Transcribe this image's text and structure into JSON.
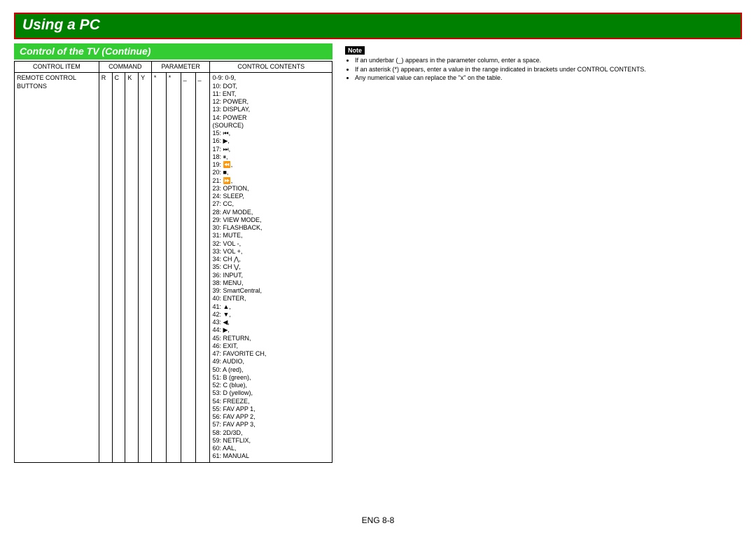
{
  "title": "Using a PC",
  "subtitle": "Control of the TV (Continue)",
  "table": {
    "headers": {
      "control_item": "CONTROL ITEM",
      "command": "COMMAND",
      "parameter": "PARAMETER",
      "control_contents": "CONTROL CONTENTS"
    },
    "row": {
      "control_item_line1": "REMOTE CONTROL",
      "control_item_line2": "BUTTONS",
      "cmd1": "R",
      "cmd2": "C",
      "cmd3": "K",
      "cmd4": "Y",
      "par1": "*",
      "par2": "*",
      "par3": "_",
      "par4": "_",
      "contents": [
        "0-9: 0-9,",
        "10: DOT,",
        "11: ENT,",
        "12: POWER,",
        "13: DISPLAY,",
        "14: POWER",
        "(SOURCE)",
        "15: ⏮,",
        "16: ▶,",
        "17: ⏭,",
        "18: ⏸,",
        "19: ⏪,",
        "20: ■,",
        "21: ⏩,",
        "23: OPTION,",
        "24: SLEEP,",
        "27: CC,",
        "28: AV MODE,",
        "29: VIEW MODE,",
        "30: FLASHBACK,",
        "31: MUTE,",
        "32: VOL -,",
        "33: VOL +,",
        "34: CH ⋀,",
        "35: CH ⋁,",
        "36: INPUT,",
        "38: MENU,",
        "39: SmartCentral,",
        "40: ENTER,",
        "41: ▲,",
        "42: ▼,",
        "43: ◀,",
        "44: ▶,",
        "45: RETURN,",
        "46: EXIT,",
        "47: FAVORITE CH,",
        "49: AUDIO,",
        "50: A (red),",
        "51: B (green),",
        "52: C (blue),",
        "53: D (yellow),",
        "54: FREEZE,",
        "55: FAV APP 1,",
        "56: FAV APP 2,",
        "57: FAV APP 3,",
        "58: 2D/3D,",
        "59: NETFLIX,",
        "60: AAL,",
        "61: MANUAL"
      ]
    }
  },
  "note_label": "Note",
  "notes": [
    "If an underbar (_) appears in the parameter column, enter a space.",
    "If an asterisk (*) appears, enter a value in the range indicated in brackets under CONTROL CONTENTS.",
    "Any numerical value can replace the \"x\" on the table."
  ],
  "page_footer": "ENG 8-8",
  "colors": {
    "title_bg": "#008000",
    "title_border": "#cc0000",
    "subtitle_bg": "#33cc33",
    "text_light": "#ffffff",
    "text_dark": "#000000",
    "note_bg": "#000000"
  }
}
